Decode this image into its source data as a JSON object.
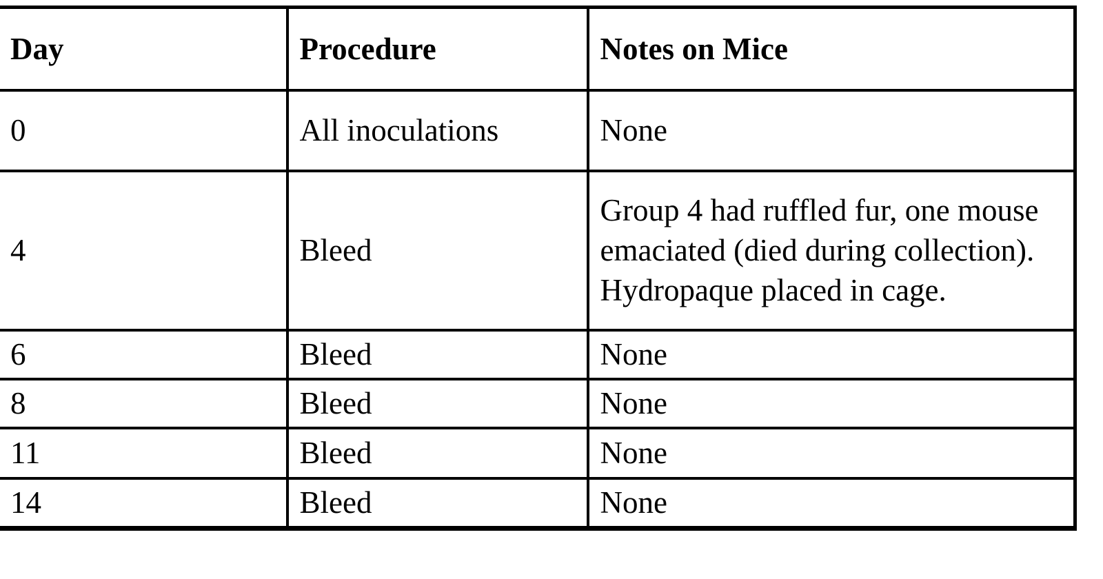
{
  "table": {
    "columns": [
      {
        "label": "Day"
      },
      {
        "label": "Procedure"
      },
      {
        "label": "Notes on Mice"
      }
    ],
    "rows": [
      {
        "day": "0",
        "procedure": "All inoculations",
        "notes": "None"
      },
      {
        "day": "4",
        "procedure": "Bleed",
        "notes": "Group 4 had ruffled fur, one mouse emaciated (died during collection). Hydropaque placed in cage."
      },
      {
        "day": "6",
        "procedure": "Bleed",
        "notes": "None"
      },
      {
        "day": "8",
        "procedure": "Bleed",
        "notes": "None"
      },
      {
        "day": "11",
        "procedure": "Bleed",
        "notes": "None"
      },
      {
        "day": "14",
        "procedure": "Bleed",
        "notes": "None"
      }
    ],
    "colors": {
      "border": "#000000",
      "text": "#000000",
      "background": "#ffffff"
    }
  }
}
